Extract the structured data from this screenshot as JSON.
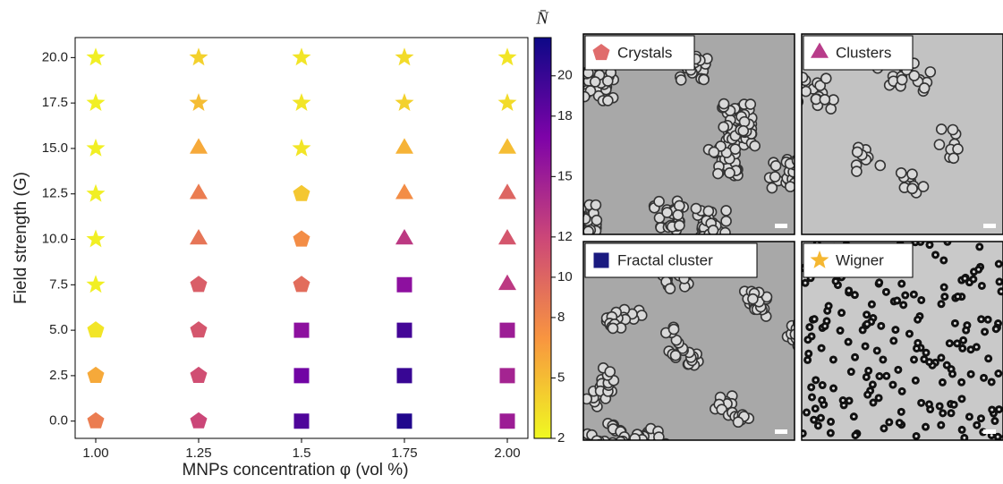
{
  "chart_data": {
    "type": "scatter",
    "xlabel": "MNPs concentration φ (vol %)",
    "ylabel": "Field strength (G)",
    "xlim": [
      0.95,
      2.05
    ],
    "ylim": [
      -0.95,
      21.1
    ],
    "xticks": [
      {
        "value": 1,
        "label": "1.00"
      },
      1.25,
      1.5,
      1.75,
      {
        "value": 2,
        "label": "2.00"
      }
    ],
    "yticks": [
      {
        "value": 0,
        "label": "0.0"
      },
      2.5,
      {
        "value": 5,
        "label": "5.0"
      },
      7.5,
      {
        "value": 10,
        "label": "10.0"
      },
      12.5,
      {
        "value": 15,
        "label": "15.0"
      },
      17.5,
      {
        "value": 20,
        "label": "20.0"
      }
    ],
    "colorbar": {
      "label": "N̄",
      "clim": [
        2,
        21.9
      ],
      "ticks": [
        2,
        5,
        8,
        10,
        12,
        15,
        18,
        20
      ],
      "colormap": "plasma_r"
    },
    "series": [
      {
        "name": "Crystals",
        "marker": "pentagon",
        "color": "#e06c6c",
        "x": [
          1,
          1,
          1,
          1.25,
          1.25,
          1.25,
          1.25,
          1.5,
          1.5,
          1.5
        ],
        "y": [
          0,
          2.5,
          5,
          0,
          2.5,
          5,
          7.5,
          7.5,
          10,
          12.5
        ],
        "c": [
          8.5,
          6,
          3,
          12,
          11.5,
          11,
          10.5,
          9.5,
          7.5,
          4.5
        ]
      },
      {
        "name": "Clusters",
        "marker": "triangle",
        "color": "#b83c8a",
        "x": [
          1.25,
          1.25,
          1.25,
          1.75,
          1.75,
          1.75,
          2,
          2,
          2,
          2
        ],
        "y": [
          10,
          12.5,
          15,
          10,
          12.5,
          15,
          7.5,
          10,
          12.5,
          15
        ],
        "c": [
          9,
          8.5,
          6,
          13,
          7.5,
          5.5,
          13,
          11,
          10,
          5
        ]
      },
      {
        "name": "Fractal cluster",
        "marker": "square",
        "color": "#1a1a80",
        "x": [
          1.5,
          1.5,
          1.5,
          1.75,
          1.75,
          1.75,
          1.75,
          2,
          2,
          2
        ],
        "y": [
          0,
          2.5,
          5,
          0,
          2.5,
          5,
          7.5,
          0,
          2.5,
          5
        ],
        "c": [
          19,
          17.5,
          16,
          21,
          20,
          19.5,
          16,
          15,
          14.5,
          15
        ]
      },
      {
        "name": "Wigner",
        "marker": "star",
        "color": "#f5b731",
        "x": [
          1,
          1,
          1,
          1,
          1,
          1,
          1.25,
          1.25,
          1.5,
          1.5,
          1.5,
          1.75,
          1.75,
          2,
          2
        ],
        "y": [
          7.5,
          10,
          12.5,
          15,
          17.5,
          20,
          17.5,
          20,
          15,
          17.5,
          20,
          17.5,
          20,
          17.5,
          20
        ],
        "c": [
          2.5,
          2.5,
          2.5,
          2.5,
          2.5,
          2.5,
          5,
          4,
          3,
          3,
          3,
          4,
          3.5,
          3.5,
          3
        ]
      }
    ]
  }
}
